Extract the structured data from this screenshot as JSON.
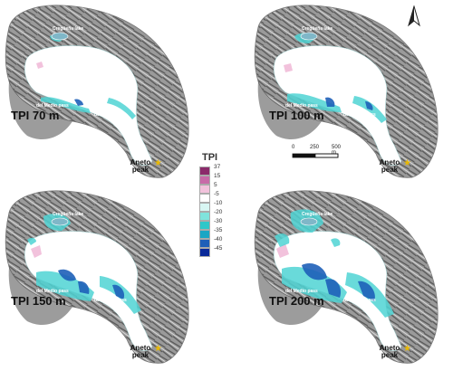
{
  "panels": [
    {
      "id": "p70",
      "title": "TPI 70 m"
    },
    {
      "id": "p100",
      "title": "TPI 100 m"
    },
    {
      "id": "p150",
      "title": "TPI 150 m"
    },
    {
      "id": "p200",
      "title": "TPI 200 m"
    }
  ],
  "labels": {
    "lake": "Cregüeña lake",
    "pass1": "del Medio pass",
    "pass2": "del Medio pass",
    "peak": "Aneto peak"
  },
  "legend": {
    "title": "TPI",
    "entries": [
      {
        "label": "37",
        "color": "#8b2a6b"
      },
      {
        "label": "15",
        "color": "#c86aa8"
      },
      {
        "label": "5",
        "color": "#f2c2dc"
      },
      {
        "label": "-5",
        "color": "#ffffff"
      },
      {
        "label": "-10",
        "color": "#d8f6f3"
      },
      {
        "label": "-20",
        "color": "#7fe3dc"
      },
      {
        "label": "-30",
        "color": "#2fc7c9"
      },
      {
        "label": "-35",
        "color": "#1aa6c4"
      },
      {
        "label": "-40",
        "color": "#1e5fb8"
      },
      {
        "label": "-45",
        "color": "#0a2a9a"
      }
    ]
  },
  "scale": {
    "ticks": [
      "0",
      "250",
      "500 m"
    ]
  },
  "north": {
    "symbol": "north-arrow"
  },
  "colors": {
    "peak_star": "#e8b800",
    "outline": "#666666"
  }
}
